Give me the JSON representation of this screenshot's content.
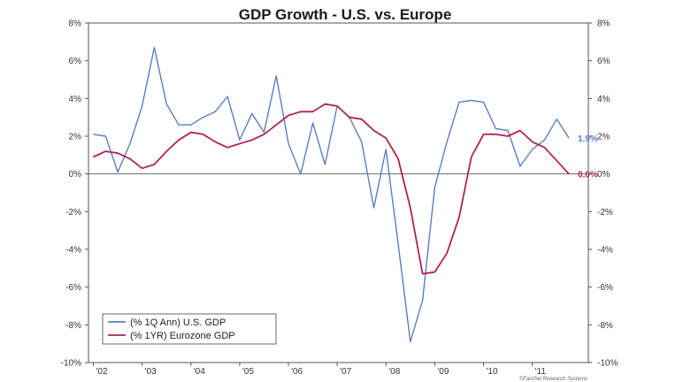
{
  "chart_data": {
    "type": "line",
    "title": "GDP Growth - U.S. vs. Europe",
    "xlabel": "",
    "ylabel": "",
    "ylim": [
      -10,
      8
    ],
    "y_ticks": [
      "8%",
      "6%",
      "4%",
      "2%",
      "0%",
      "-2%",
      "-4%",
      "-6%",
      "-8%",
      "-10%"
    ],
    "y_tick_values": [
      8,
      6,
      4,
      2,
      0,
      -2,
      -4,
      -6,
      -8,
      -10
    ],
    "x_range": [
      2001.9,
      2012.15
    ],
    "x_ticks": [
      "'02",
      "'03",
      "'04",
      "'05",
      "'06",
      "'07",
      "'08",
      "'09",
      "'10",
      "'11"
    ],
    "x_tick_values": [
      2002,
      2003,
      2004,
      2005,
      2006,
      2007,
      2008,
      2009,
      2010,
      2011
    ],
    "grid": false,
    "legend_position": "bottom-left",
    "series": [
      {
        "name": "(% 1Q Ann) U.S. GDP",
        "color": "#5b7fc0",
        "end_label": "1.9%",
        "x": [
          2002.0,
          2002.25,
          2002.5,
          2002.75,
          2003.0,
          2003.25,
          2003.5,
          2003.75,
          2004.0,
          2004.25,
          2004.5,
          2004.75,
          2005.0,
          2005.25,
          2005.5,
          2005.75,
          2006.0,
          2006.25,
          2006.5,
          2006.75,
          2007.0,
          2007.25,
          2007.5,
          2007.75,
          2008.0,
          2008.25,
          2008.5,
          2008.75,
          2009.0,
          2009.25,
          2009.5,
          2009.75,
          2010.0,
          2010.25,
          2010.5,
          2010.75,
          2011.0,
          2011.25,
          2011.5,
          2011.75
        ],
        "values": [
          2.1,
          2.0,
          0.1,
          1.6,
          3.6,
          6.7,
          3.7,
          2.6,
          2.6,
          3.0,
          3.3,
          4.1,
          1.8,
          3.2,
          2.2,
          5.2,
          1.6,
          0.0,
          2.7,
          0.5,
          3.6,
          3.0,
          1.7,
          -1.8,
          1.3,
          -3.7,
          -8.9,
          -6.7,
          -0.7,
          1.7,
          3.8,
          3.9,
          3.8,
          2.4,
          2.3,
          0.4,
          1.3,
          1.8,
          2.9,
          1.9
        ]
      },
      {
        "name": "(% 1YR) Eurozone GDP",
        "color": "#b0244f",
        "end_label": "0.0%",
        "x": [
          2002.0,
          2002.25,
          2002.5,
          2002.75,
          2003.0,
          2003.25,
          2003.5,
          2003.75,
          2004.0,
          2004.25,
          2004.5,
          2004.75,
          2005.0,
          2005.25,
          2005.5,
          2005.75,
          2006.0,
          2006.25,
          2006.5,
          2006.75,
          2007.0,
          2007.25,
          2007.5,
          2007.75,
          2008.0,
          2008.25,
          2008.5,
          2008.75,
          2009.0,
          2009.25,
          2009.5,
          2009.75,
          2010.0,
          2010.25,
          2010.5,
          2010.75,
          2011.0,
          2011.25,
          2011.5,
          2011.75
        ],
        "values": [
          0.9,
          1.2,
          1.1,
          0.8,
          0.3,
          0.5,
          1.2,
          1.8,
          2.2,
          2.1,
          1.7,
          1.4,
          1.6,
          1.8,
          2.1,
          2.6,
          3.1,
          3.3,
          3.3,
          3.7,
          3.6,
          3.0,
          2.9,
          2.3,
          1.9,
          0.8,
          -1.8,
          -5.3,
          -5.2,
          -4.2,
          -2.3,
          0.9,
          2.1,
          2.1,
          2.0,
          2.3,
          1.7,
          1.4,
          0.7,
          0.0
        ]
      }
    ],
    "source_note": "©FactSet Research Systems"
  }
}
